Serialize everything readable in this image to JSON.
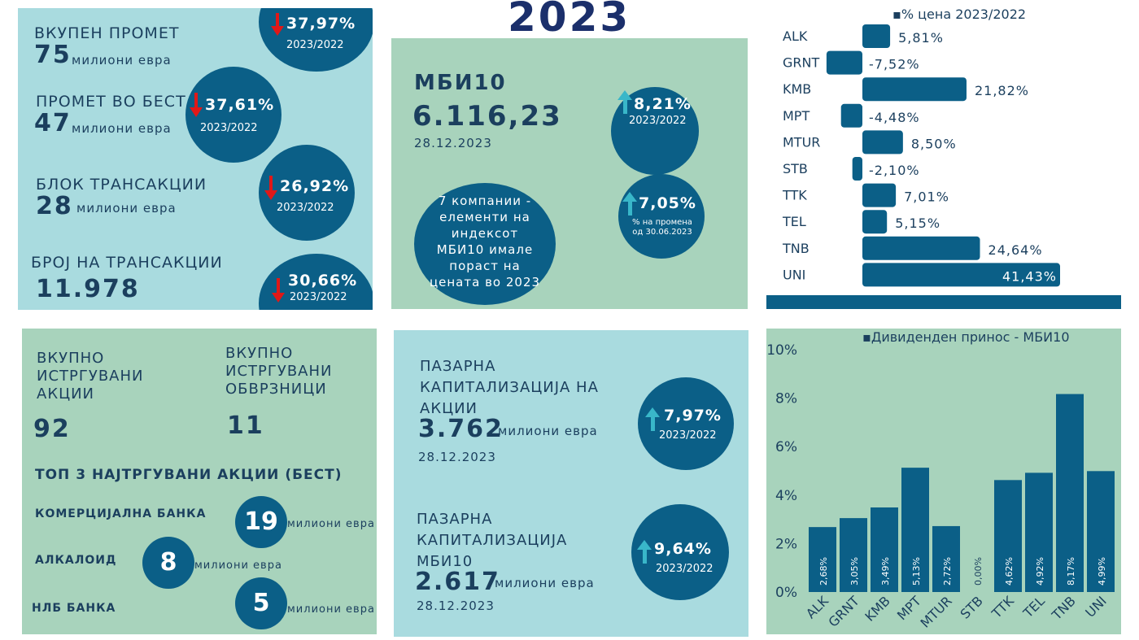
{
  "year": "2023",
  "left_top": {
    "rows": [
      {
        "label": "ВКУПЕН ПРОМЕТ",
        "value": "75",
        "unit": "милиони евра",
        "change": "37,97%",
        "period": "2023/2022"
      },
      {
        "label": "ПРОМЕТ ВО БЕСТ",
        "value": "47",
        "unit": "милиони евра",
        "change": "37,61%",
        "period": "2023/2022"
      },
      {
        "label": "БЛОК ТРАНСАКЦИИ",
        "value": "28",
        "unit": "милиони евра",
        "change": "26,92%",
        "period": "2023/2022"
      },
      {
        "label": "БРОЈ НА ТРАНСАКЦИИ",
        "value": "11.978",
        "unit": "",
        "change": "30,66%",
        "period": "2023/2022"
      }
    ]
  },
  "mbi": {
    "title": "МБИ10",
    "value": "6.116,23",
    "date": "28.12.2023",
    "change1": "8,21%",
    "period1": "2023/2022",
    "change2": "7,05%",
    "period2": "% на промена од 30.06.2023",
    "companies_note": "7 компании - елементи на индексот МБИ10 имале пораст на цената во 2023"
  },
  "bottom_left": {
    "stocks_label": "ВКУПНО ИСТРГУВАНИ АКЦИИ",
    "stocks_value": "92",
    "bonds_label": "ВКУПНО ИСТРГУВАНИ ОБВРЗНИЦИ",
    "bonds_value": "11",
    "top3_title": "ТОП 3 НАЈТРГУВАНИ АКЦИИ (БЕСТ)",
    "top3": [
      {
        "name": "КОМЕРЦИЈАЛНА БАНКА",
        "value": "19",
        "unit": "милиони евра"
      },
      {
        "name": "АЛКАЛОИД",
        "value": "8",
        "unit": "милиони евра"
      },
      {
        "name": "НЛБ БАНКА",
        "value": "5",
        "unit": "милиони евра"
      }
    ]
  },
  "market_cap": {
    "shares_label": "ПАЗАРНА КАПИТАЛИЗАЦИЈА НА АКЦИИ",
    "shares_value": "3.762",
    "shares_unit": "милиони евра",
    "shares_date": "28.12.2023",
    "shares_change": "7,97%",
    "shares_period": "2023/2022",
    "mbi_label": "ПАЗАРНА КАПИТАЛИЗАЦИЈА МБИ10",
    "mbi_value": "2.617",
    "mbi_unit": "милиони евра",
    "mbi_date": "28.12.2023",
    "mbi_change": "9,64%",
    "mbi_period": "2023/2022"
  },
  "colors": {
    "panel_blue": "#a9dbdf",
    "panel_green": "#a8d3bc",
    "circle": "#0b5f87",
    "bar": "#0b5f87",
    "down_arrow": "#e01818",
    "up_arrow": "#39b7c9"
  },
  "chart_data": [
    {
      "type": "bar",
      "orientation": "horizontal",
      "title": "% цена 2023/2022",
      "categories": [
        "ALK",
        "GRNT",
        "KMB",
        "MPT",
        "MTUR",
        "STB",
        "TTK",
        "TEL",
        "TNB",
        "UNI"
      ],
      "values": [
        5.81,
        -7.52,
        21.82,
        -4.48,
        8.5,
        -2.1,
        7.01,
        5.15,
        24.64,
        41.43
      ],
      "labels": [
        "5,81%",
        "-7,52%",
        "21,82%",
        "-4,48%",
        "8,50%",
        "-2,10%",
        "7,01%",
        "5,15%",
        "24,64%",
        "41,43%"
      ]
    },
    {
      "type": "bar",
      "title": "Дивиденден принос - МБИ10",
      "categories": [
        "ALK",
        "GRNT",
        "KMB",
        "MPT",
        "MTUR",
        "STB",
        "TTK",
        "TEL",
        "TNB",
        "UNI"
      ],
      "values": [
        2.68,
        3.05,
        3.49,
        5.13,
        2.72,
        0.0,
        4.62,
        4.92,
        8.17,
        4.99
      ],
      "labels": [
        "2,68%",
        "3,05%",
        "3,49%",
        "5,13%",
        "2,72%",
        "0,00%",
        "4,62%",
        "4,92%",
        "8,17%",
        "4,99%"
      ],
      "ylim": [
        0,
        10
      ],
      "yticks": [
        "0%",
        "2%",
        "4%",
        "6%",
        "8%",
        "10%"
      ],
      "grid": false
    }
  ]
}
